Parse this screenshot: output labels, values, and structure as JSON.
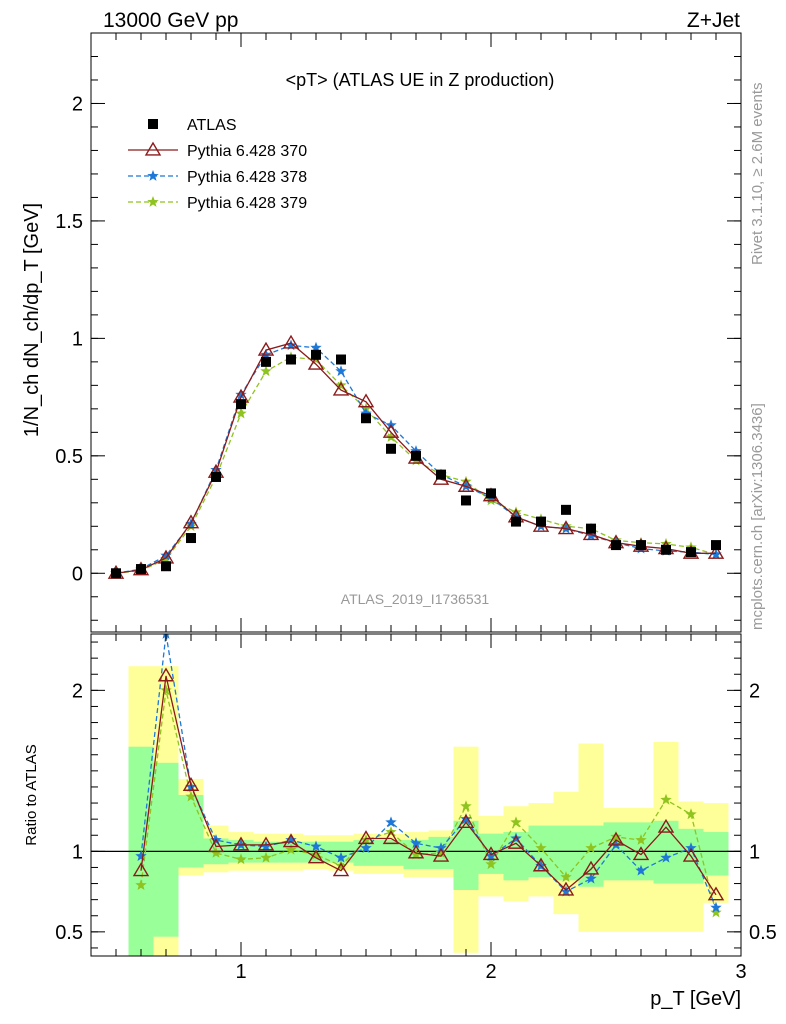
{
  "header": {
    "left": "13000 GeV pp",
    "right": "Z+Jet"
  },
  "side_text": {
    "rivet": "Rivet 3.1.10, ≥ 2.6M events",
    "mcplots": "mcplots.cern.ch [arXiv:1306.3436]"
  },
  "watermark": "ATLAS_2019_I1736531",
  "chart_data": [
    {
      "type": "line",
      "title": "<pT> (ATLAS UE in Z production)",
      "ylabel": "1/N_ch dN_ch/dp_T [GeV]",
      "xlim": [
        0.4,
        3.0
      ],
      "ylim": [
        -0.25,
        2.3
      ],
      "yticks": [
        0,
        0.5,
        1,
        1.5,
        2
      ],
      "yticklabels": [
        "0",
        "0.5",
        "1",
        "1.5",
        "2"
      ],
      "x": [
        0.5,
        0.6,
        0.7,
        0.8,
        0.9,
        1.0,
        1.1,
        1.2,
        1.3,
        1.4,
        1.5,
        1.6,
        1.7,
        1.8,
        1.9,
        2.0,
        2.1,
        2.2,
        2.3,
        2.4,
        2.5,
        2.6,
        2.7,
        2.8,
        2.9
      ],
      "series": [
        {
          "name": "ATLAS",
          "color": "#000000",
          "marker": "square",
          "values": [
            0.0,
            0.018,
            0.03,
            0.15,
            0.41,
            0.72,
            0.9,
            0.91,
            0.93,
            0.91,
            0.66,
            0.53,
            0.5,
            0.42,
            0.31,
            0.34,
            0.22,
            0.22,
            0.27,
            0.19,
            0.12,
            0.12,
            0.1,
            0.09,
            0.12
          ]
        },
        {
          "name": "Pythia 6.428 370",
          "color": "#8b1a1a",
          "marker": "triangle-open",
          "dash": "solid",
          "values": [
            0.0,
            0.015,
            0.065,
            0.215,
            0.43,
            0.75,
            0.95,
            0.98,
            0.89,
            0.78,
            0.73,
            0.6,
            0.49,
            0.4,
            0.37,
            0.33,
            0.24,
            0.2,
            0.19,
            0.165,
            0.13,
            0.115,
            0.105,
            0.085,
            0.085
          ]
        },
        {
          "name": "Pythia 6.428 378",
          "color": "#1e78d7",
          "marker": "star",
          "dash": "dashed",
          "values": [
            0.0,
            0.018,
            0.075,
            0.21,
            0.44,
            0.76,
            0.93,
            0.97,
            0.96,
            0.86,
            0.68,
            0.63,
            0.52,
            0.42,
            0.37,
            0.32,
            0.24,
            0.2,
            0.19,
            0.16,
            0.13,
            0.105,
            0.095,
            0.09,
            0.08
          ]
        },
        {
          "name": "Pythia 6.428 379",
          "color": "#8fc31f",
          "marker": "star",
          "dash": "dashed",
          "values": [
            0.0,
            0.012,
            0.06,
            0.2,
            0.41,
            0.68,
            0.86,
            0.92,
            0.91,
            0.8,
            0.7,
            0.58,
            0.48,
            0.42,
            0.39,
            0.31,
            0.26,
            0.23,
            0.2,
            0.19,
            0.14,
            0.13,
            0.125,
            0.11,
            0.08
          ]
        }
      ]
    },
    {
      "type": "line",
      "xlabel": "p_T [GeV]",
      "ylabel": "Ratio to ATLAS",
      "xlim": [
        0.4,
        3.0
      ],
      "ylim": [
        0.35,
        2.35
      ],
      "yticks": [
        0.5,
        1,
        2
      ],
      "yticklabels": [
        "0.5",
        "1",
        "2"
      ],
      "xticks": [
        1,
        2,
        3
      ],
      "xticklabels": [
        "1",
        "2",
        "3"
      ],
      "x": [
        0.6,
        0.7,
        0.8,
        0.9,
        1.0,
        1.1,
        1.2,
        1.3,
        1.4,
        1.5,
        1.6,
        1.7,
        1.8,
        1.9,
        2.0,
        2.1,
        2.2,
        2.3,
        2.4,
        2.5,
        2.6,
        2.7,
        2.8,
        2.9
      ],
      "band_edges": [
        0.55,
        0.65,
        0.75,
        0.85,
        0.95,
        1.05,
        1.15,
        1.25,
        1.35,
        1.45,
        1.55,
        1.65,
        1.75,
        1.85,
        1.95,
        2.05,
        2.15,
        2.25,
        2.35,
        2.45,
        2.55,
        2.65,
        2.75,
        2.85,
        2.95
      ],
      "band_yellow": [
        [
          0.0,
          2.15
        ],
        [
          0.0,
          2.15
        ],
        [
          0.85,
          1.45
        ],
        [
          0.87,
          1.16
        ],
        [
          0.88,
          1.12
        ],
        [
          0.88,
          1.11
        ],
        [
          0.88,
          1.11
        ],
        [
          0.89,
          1.1
        ],
        [
          0.88,
          1.1
        ],
        [
          0.86,
          1.11
        ],
        [
          0.86,
          1.11
        ],
        [
          0.84,
          1.12
        ],
        [
          0.84,
          1.13
        ],
        [
          0.37,
          1.65
        ],
        [
          0.72,
          1.22
        ],
        [
          0.69,
          1.28
        ],
        [
          0.72,
          1.3
        ],
        [
          0.61,
          1.37
        ],
        [
          0.5,
          1.67
        ],
        [
          0.5,
          1.27
        ],
        [
          0.5,
          1.27
        ],
        [
          0.5,
          1.68
        ],
        [
          0.5,
          1.31
        ],
        [
          0.68,
          1.3
        ],
        [
          0.68,
          1.3
        ]
      ],
      "band_green": [
        [
          0.0,
          1.65
        ],
        [
          0.47,
          1.55
        ],
        [
          0.9,
          1.35
        ],
        [
          0.92,
          1.08
        ],
        [
          0.93,
          1.07
        ],
        [
          0.93,
          1.06
        ],
        [
          0.93,
          1.06
        ],
        [
          0.93,
          1.06
        ],
        [
          0.93,
          1.06
        ],
        [
          0.91,
          1.07
        ],
        [
          0.91,
          1.07
        ],
        [
          0.89,
          1.07
        ],
        [
          0.89,
          1.09
        ],
        [
          0.76,
          1.19
        ],
        [
          0.86,
          1.11
        ],
        [
          0.82,
          1.12
        ],
        [
          0.84,
          1.16
        ],
        [
          0.82,
          1.16
        ],
        [
          0.78,
          1.16
        ],
        [
          0.82,
          1.18
        ],
        [
          0.82,
          1.18
        ],
        [
          0.8,
          1.19
        ],
        [
          0.8,
          1.14
        ],
        [
          0.85,
          1.12
        ],
        [
          0.85,
          1.12
        ]
      ],
      "series": [
        {
          "name": "Pythia 6.428 370",
          "color": "#8b1a1a",
          "marker": "triangle-open",
          "dash": "solid",
          "values": [
            0.88,
            2.09,
            1.41,
            1.03,
            1.04,
            1.04,
            1.06,
            0.96,
            0.88,
            1.08,
            1.08,
            0.99,
            0.97,
            1.18,
            0.98,
            1.05,
            0.91,
            0.76,
            0.89,
            1.07,
            0.98,
            1.15,
            0.97,
            0.73
          ]
        },
        {
          "name": "Pythia 6.428 378",
          "color": "#1e78d7",
          "marker": "star",
          "dash": "dashed",
          "values": [
            0.97,
            2.35,
            1.4,
            1.07,
            1.04,
            1.03,
            1.07,
            1.03,
            0.96,
            1.02,
            1.18,
            1.05,
            1.02,
            1.2,
            0.97,
            1.08,
            0.91,
            0.75,
            0.83,
            1.04,
            0.88,
            0.96,
            1.02,
            0.65
          ]
        },
        {
          "name": "Pythia 6.428 379",
          "color": "#8fc31f",
          "marker": "star",
          "dash": "dashed",
          "values": [
            0.79,
            2.0,
            1.34,
            0.99,
            0.95,
            0.96,
            1.01,
            0.98,
            0.91,
            1.07,
            1.12,
            0.98,
            0.99,
            1.28,
            0.92,
            1.18,
            1.02,
            0.84,
            1.02,
            1.09,
            1.07,
            1.32,
            1.23,
            0.62
          ]
        }
      ]
    }
  ]
}
